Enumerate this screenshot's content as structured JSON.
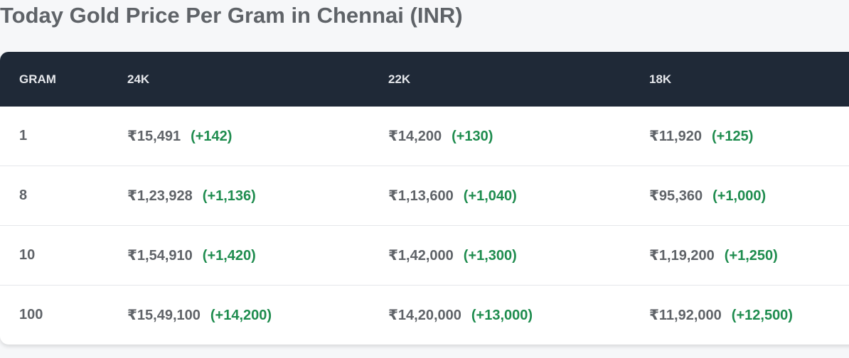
{
  "header": {
    "title": "Today Gold Price Per Gram in Chennai (INR)"
  },
  "table": {
    "columns": [
      "GRAM",
      "24K",
      "22K",
      "18K"
    ],
    "rows": [
      {
        "gram": "1",
        "cells": [
          {
            "price": "₹15,491",
            "change": "(+142)"
          },
          {
            "price": "₹14,200",
            "change": "(+130)"
          },
          {
            "price": "₹11,920",
            "change": "(+125)"
          }
        ]
      },
      {
        "gram": "8",
        "cells": [
          {
            "price": "₹1,23,928",
            "change": "(+1,136)"
          },
          {
            "price": "₹1,13,600",
            "change": "(+1,040)"
          },
          {
            "price": "₹95,360",
            "change": "(+1,000)"
          }
        ]
      },
      {
        "gram": "10",
        "cells": [
          {
            "price": "₹1,54,910",
            "change": "(+1,420)"
          },
          {
            "price": "₹1,42,000",
            "change": "(+1,300)"
          },
          {
            "price": "₹1,19,200",
            "change": "(+1,250)"
          }
        ]
      },
      {
        "gram": "100",
        "cells": [
          {
            "price": "₹15,49,100",
            "change": "(+14,200)"
          },
          {
            "price": "₹14,20,000",
            "change": "(+13,000)"
          },
          {
            "price": "₹11,92,000",
            "change": "(+12,500)"
          }
        ]
      }
    ]
  }
}
